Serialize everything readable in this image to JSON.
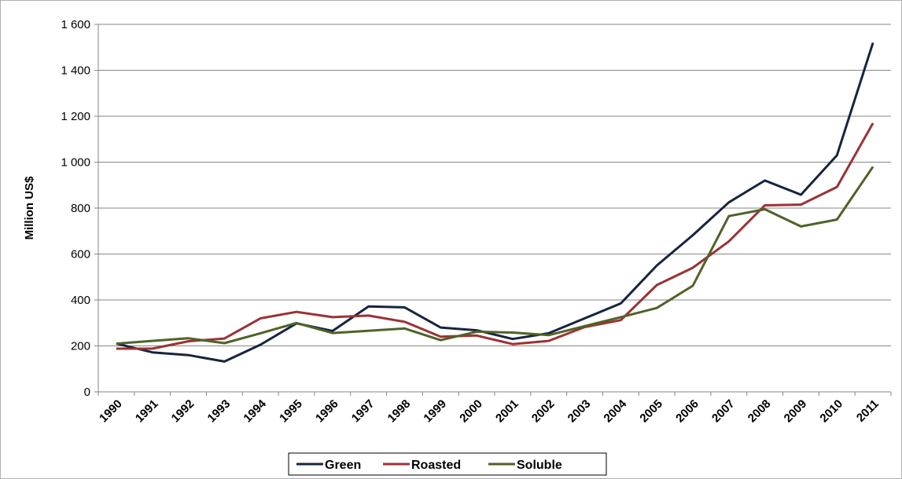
{
  "chart_data": {
    "type": "line",
    "title": "",
    "xlabel": "",
    "ylabel": "Million US$",
    "ylim": [
      0,
      1600
    ],
    "yticks": [
      0,
      200,
      400,
      600,
      800,
      1000,
      1200,
      1400,
      1600
    ],
    "ytick_labels": [
      "0",
      "200",
      "400",
      "600",
      "800",
      "1 000",
      "1 200",
      "1 400",
      "1 600"
    ],
    "categories": [
      "1990",
      "1991",
      "1992",
      "1993",
      "1994",
      "1995",
      "1996",
      "1997",
      "1998",
      "1999",
      "2000",
      "2001",
      "2002",
      "2003",
      "2004",
      "2005",
      "2006",
      "2007",
      "2008",
      "2009",
      "2010",
      "2011"
    ],
    "grid": true,
    "legend_position": "bottom",
    "series": [
      {
        "name": "Green",
        "color": "#17243f",
        "values": [
          210,
          172,
          160,
          132,
          205,
          298,
          265,
          372,
          368,
          280,
          268,
          230,
          255,
          320,
          385,
          550,
          682,
          825,
          920,
          858,
          1030,
          1520
        ]
      },
      {
        "name": "Roasted",
        "color": "#9b3234",
        "values": [
          188,
          188,
          220,
          232,
          320,
          348,
          325,
          332,
          305,
          240,
          245,
          208,
          222,
          282,
          312,
          465,
          540,
          655,
          812,
          815,
          892,
          1170
        ]
      },
      {
        "name": "Soluble",
        "color": "#4f6228",
        "values": [
          210,
          222,
          233,
          212,
          255,
          300,
          256,
          266,
          276,
          225,
          262,
          258,
          247,
          286,
          325,
          365,
          462,
          765,
          795,
          720,
          750,
          980
        ]
      }
    ]
  }
}
